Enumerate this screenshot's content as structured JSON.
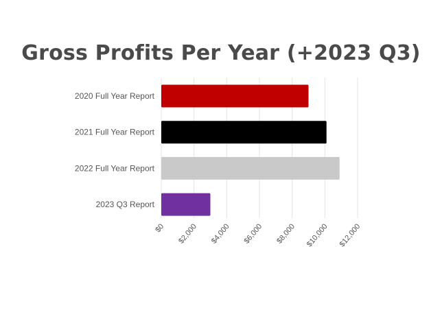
{
  "chart_data": {
    "type": "bar",
    "orientation": "horizontal",
    "title": "Gross Profits Per Year (+2023 Q3)",
    "xlabel": "",
    "ylabel": "",
    "categories": [
      "2020 Full Year Report",
      "2021 Full Year Report",
      "2022 Full Year Report",
      "2023 Q3 Report"
    ],
    "values": [
      9000,
      10100,
      10900,
      3000
    ],
    "colors": [
      "#c00000",
      "#000000",
      "#c9c9c9",
      "#7030a0"
    ],
    "xlim": [
      0,
      12000
    ],
    "ticks": [
      0,
      2000,
      4000,
      6000,
      8000,
      10000,
      12000
    ],
    "tick_labels": [
      "$0",
      "$2,000",
      "$4,000",
      "$6,000",
      "$8,000",
      "$10,000",
      "$12,000"
    ],
    "grid": "vertical",
    "legend": "none"
  }
}
